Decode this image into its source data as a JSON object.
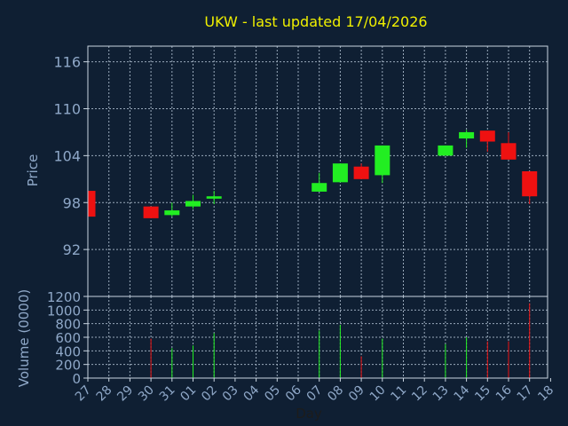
{
  "title": "UKW - last updated 17/04/2026",
  "colors": {
    "background": "#0f1f33",
    "up": "#22ee22",
    "down": "#ee1111",
    "title": "#f0f000",
    "axis_text": "#8fa8c8"
  },
  "chart_data": [
    {
      "type": "candlestick",
      "title": "UKW - last updated 17/04/2026",
      "ylabel": "Price",
      "ylim": [
        86,
        118
      ],
      "yticks": [
        92,
        98,
        104,
        110,
        116
      ],
      "grid": true,
      "categories": [
        "27",
        "28",
        "29",
        "30",
        "31",
        "01",
        "02",
        "03",
        "04",
        "05",
        "06",
        "07",
        "08",
        "09",
        "10",
        "11",
        "12",
        "13",
        "14",
        "15",
        "16",
        "17",
        "18"
      ],
      "candles": [
        {
          "x": "27",
          "open": 99.5,
          "high": 99.5,
          "low": 96.2,
          "close": 96.2
        },
        {
          "x": "30",
          "open": 97.5,
          "high": 97.5,
          "low": 96.0,
          "close": 96.0
        },
        {
          "x": "31",
          "open": 96.4,
          "high": 98.0,
          "low": 96.2,
          "close": 97.0
        },
        {
          "x": "01",
          "open": 97.5,
          "high": 99.0,
          "low": 97.2,
          "close": 98.2
        },
        {
          "x": "02",
          "open": 98.5,
          "high": 99.5,
          "low": 97.8,
          "close": 98.8
        },
        {
          "x": "07",
          "open": 99.4,
          "high": 101.8,
          "low": 99.4,
          "close": 100.5
        },
        {
          "x": "08",
          "open": 100.6,
          "high": 103.0,
          "low": 100.6,
          "close": 103.0
        },
        {
          "x": "09",
          "open": 102.6,
          "high": 103.0,
          "low": 101.0,
          "close": 101.0
        },
        {
          "x": "10",
          "open": 101.5,
          "high": 105.3,
          "low": 100.5,
          "close": 105.3
        },
        {
          "x": "13",
          "open": 104.0,
          "high": 105.3,
          "low": 104.0,
          "close": 105.3
        },
        {
          "x": "14",
          "open": 106.2,
          "high": 107.3,
          "low": 105.0,
          "close": 107.0
        },
        {
          "x": "15",
          "open": 107.2,
          "high": 107.2,
          "low": 104.5,
          "close": 105.8
        },
        {
          "x": "16",
          "open": 105.6,
          "high": 107.0,
          "low": 103.5,
          "close": 103.5
        },
        {
          "x": "17",
          "open": 102.0,
          "high": 102.0,
          "low": 97.8,
          "close": 98.8
        }
      ]
    },
    {
      "type": "bar",
      "ylabel": "Volume (0000)",
      "xlabel": "Day",
      "ylim": [
        0,
        1200
      ],
      "yticks": [
        0,
        200,
        400,
        600,
        800,
        1000,
        1200
      ],
      "grid": true,
      "categories": [
        "27",
        "28",
        "29",
        "30",
        "31",
        "01",
        "02",
        "03",
        "04",
        "05",
        "06",
        "07",
        "08",
        "09",
        "10",
        "11",
        "12",
        "13",
        "14",
        "15",
        "16",
        "17",
        "18"
      ],
      "bars": [
        {
          "x": "30",
          "value": 580,
          "direction": "down"
        },
        {
          "x": "31",
          "value": 440,
          "direction": "up"
        },
        {
          "x": "01",
          "value": 480,
          "direction": "up"
        },
        {
          "x": "02",
          "value": 660,
          "direction": "up"
        },
        {
          "x": "07",
          "value": 700,
          "direction": "up"
        },
        {
          "x": "08",
          "value": 780,
          "direction": "up"
        },
        {
          "x": "09",
          "value": 320,
          "direction": "down"
        },
        {
          "x": "10",
          "value": 580,
          "direction": "up"
        },
        {
          "x": "13",
          "value": 500,
          "direction": "up"
        },
        {
          "x": "14",
          "value": 600,
          "direction": "up"
        },
        {
          "x": "15",
          "value": 540,
          "direction": "down"
        },
        {
          "x": "16",
          "value": 540,
          "direction": "down"
        },
        {
          "x": "17",
          "value": 1100,
          "direction": "down"
        }
      ]
    }
  ]
}
